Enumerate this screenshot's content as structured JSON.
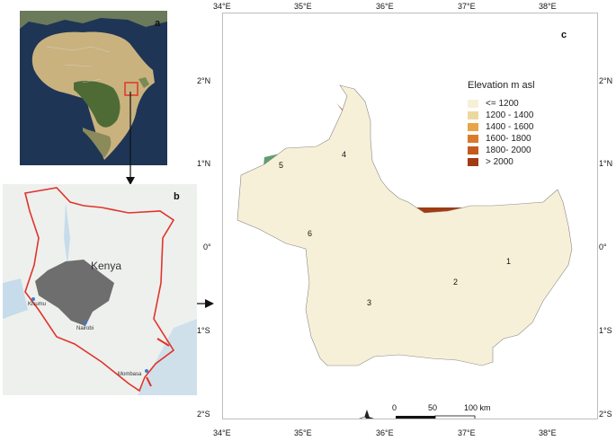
{
  "panels": {
    "a": {
      "letter": "a"
    },
    "b": {
      "letter": "b",
      "country": "Kenya",
      "cities": {
        "kisumu": "Kisumu",
        "nairobi": "Nairobi",
        "mombasa": "Mombasa"
      }
    },
    "c": {
      "letter": "c"
    }
  },
  "axes": {
    "longitudes_top": [
      "34°E",
      "35°E",
      "36°E",
      "37°E",
      "38°E"
    ],
    "longitudes_bottom": [
      "34°E",
      "35°E",
      "36°E",
      "37°E",
      "38°E"
    ],
    "latitudes_left": [
      "2°N",
      "1°N",
      "0°",
      "1°S",
      "2°S"
    ],
    "latitudes_right": [
      "2°N",
      "1°N",
      "0°",
      "1°S",
      "2°S"
    ]
  },
  "legend": {
    "title": "Elevation m asl",
    "items": [
      {
        "label": "<= 1200",
        "color": "#f7f0d8"
      },
      {
        "label": "1200 - 1400",
        "color": "#ecd9a0"
      },
      {
        "label": "1400 - 1600",
        "color": "#e8a548"
      },
      {
        "label": "1600- 1800",
        "color": "#dc7a2c"
      },
      {
        "label": "1800- 2000",
        "color": "#c55a1e"
      },
      {
        "label": "> 2000",
        "color": "#a13b12"
      }
    ]
  },
  "zones": {
    "z1": "1",
    "z2": "2",
    "z3": "3",
    "z4": "4",
    "z5": "5",
    "z6": "6"
  },
  "zone_color": "#5f9e6e",
  "scale_bar": {
    "zero": "0",
    "mid": "50",
    "end": "100 km"
  }
}
